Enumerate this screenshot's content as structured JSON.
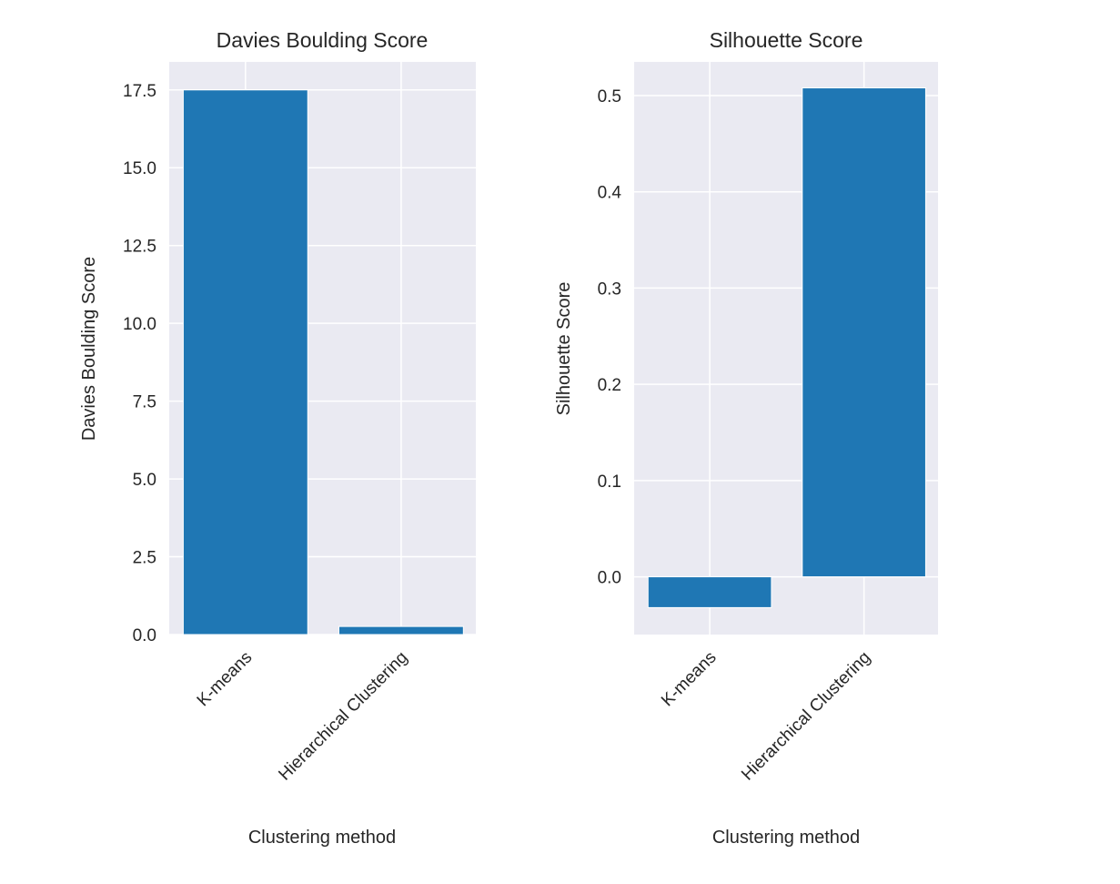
{
  "chart_data": [
    {
      "type": "bar",
      "title": "Davies Boulding Score",
      "xlabel": "Clustering method",
      "ylabel": "Davies Boulding Score",
      "categories": [
        "K-means",
        "Hierarchical Clustering"
      ],
      "values": [
        17.5,
        0.26
      ],
      "ylim": [
        0,
        18.4
      ],
      "yticks": [
        0.0,
        2.5,
        5.0,
        7.5,
        10.0,
        12.5,
        15.0,
        17.5
      ],
      "ytick_labels": [
        "0.0",
        "2.5",
        "5.0",
        "7.5",
        "10.0",
        "12.5",
        "15.0",
        "17.5"
      ],
      "grid": true,
      "bar_color": "#1f77b4",
      "background_color": "#eaeaf2"
    },
    {
      "type": "bar",
      "title": "Silhouette Score",
      "xlabel": "Clustering method",
      "ylabel": "Silhouette Score",
      "categories": [
        "K-means",
        "Hierarchical Clustering"
      ],
      "values": [
        -0.032,
        0.508
      ],
      "ylim": [
        -0.06,
        0.535
      ],
      "yticks": [
        0.0,
        0.1,
        0.2,
        0.3,
        0.4,
        0.5
      ],
      "ytick_labels": [
        "0.0",
        "0.1",
        "0.2",
        "0.3",
        "0.4",
        "0.5"
      ],
      "grid": true,
      "bar_color": "#1f77b4",
      "background_color": "#eaeaf2"
    }
  ]
}
